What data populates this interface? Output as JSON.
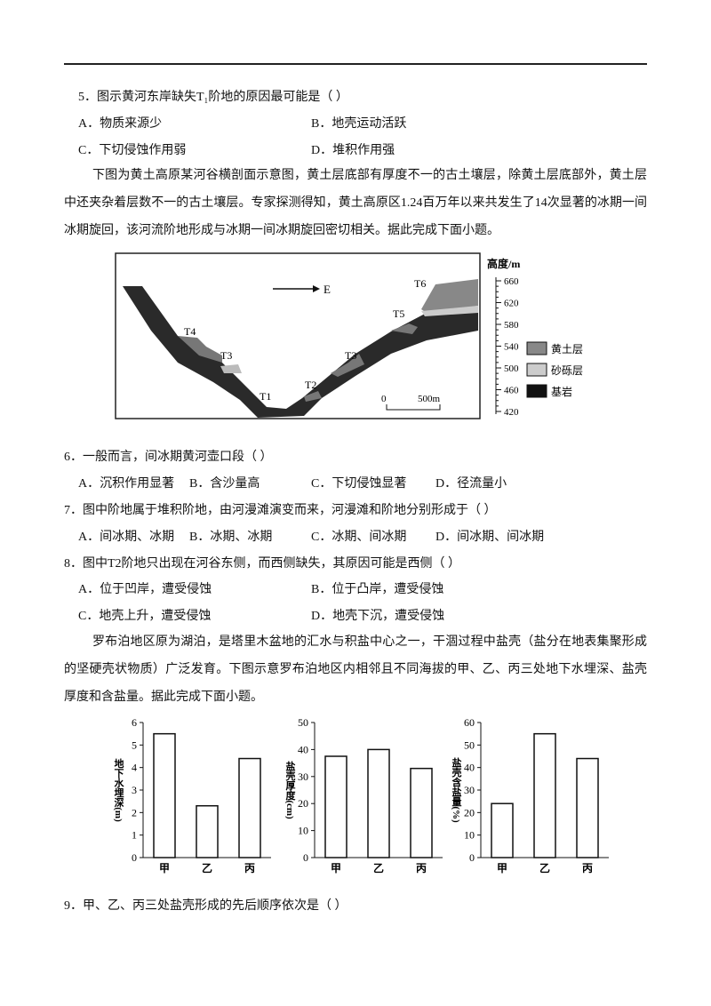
{
  "q5": {
    "stem": "5．图示黄河东岸缺失T₁阶地的原因最可能是（ ）",
    "options": [
      "A．物质来源少",
      "B．地壳运动活跃",
      "C．下切侵蚀作用弱",
      "D．堆积作用强"
    ]
  },
  "passage1": "下图为黄土高原某河谷横剖面示意图，黄土层底部有厚度不一的古土壤层，除黄土层底部外，黄土层中还夹杂着层数不一的古土壤层。专家探测得知，黄土高原区1.24百万年以来共发生了14次显著的冰期一间冰期旋回，该河流阶地形成与冰期一间冰期旋回密切相关。据此完成下面小题。",
  "figure1": {
    "terraces": [
      "T6",
      "T5",
      "T4",
      "T3",
      "T3",
      "T2",
      "T1"
    ],
    "direction": "E",
    "scale": [
      "0",
      "500m"
    ],
    "axis_title": "高度/m",
    "axis_ticks": [
      420,
      460,
      500,
      540,
      580,
      620,
      660
    ],
    "axis_range": [
      420,
      660
    ],
    "legend": [
      "黄土层",
      "砂砾层",
      "基岩"
    ]
  },
  "q6": {
    "stem": "6．一般而言，间冰期黄河壶口段（ ）",
    "options": [
      "A．沉积作用显著",
      "B．含沙量高",
      "C．下切侵蚀显著",
      "D．径流量小"
    ]
  },
  "q7": {
    "stem": "7．图中阶地属于堆积阶地，由河漫滩演变而来，河漫滩和阶地分别形成于（ ）",
    "options": [
      "A．间冰期、冰期",
      "B．冰期、冰期",
      "C．冰期、间冰期",
      "D．间冰期、间冰期"
    ]
  },
  "q8": {
    "stem": "8．图中T2阶地只出现在河谷东侧，而西侧缺失，其原因可能是西侧（ ）",
    "options": [
      "A．位于凹岸，遭受侵蚀",
      "B．位于凸岸，遭受侵蚀",
      "C．地壳上升，遭受侵蚀",
      "D．地壳下沉，遭受侵蚀"
    ]
  },
  "passage2": "罗布泊地区原为湖泊，是塔里木盆地的汇水与积盐中心之一，干涸过程中盐壳（盐分在地表集聚形成的坚硬壳状物质）广泛发育。下图示意罗布泊地区内相邻且不同海拔的甲、乙、丙三处地下水埋深、盐壳厚度和含盐量。据此完成下面小题。",
  "chart_data": [
    {
      "type": "bar",
      "y_label": "地下水埋深(m)",
      "categories": [
        "甲",
        "乙",
        "丙"
      ],
      "values": [
        5.5,
        2.3,
        4.4
      ],
      "ylim": [
        0,
        6
      ],
      "yticks": [
        0,
        1,
        2,
        3,
        4,
        5,
        6
      ]
    },
    {
      "type": "bar",
      "y_label": "盐壳厚度(cm)",
      "categories": [
        "甲",
        "乙",
        "丙"
      ],
      "values": [
        37.5,
        40,
        33
      ],
      "ylim": [
        0,
        50
      ],
      "yticks": [
        0,
        10,
        20,
        30,
        40,
        50
      ]
    },
    {
      "type": "bar",
      "y_label": "盐壳含盐量(%)",
      "categories": [
        "甲",
        "乙",
        "丙"
      ],
      "values": [
        24,
        55,
        44
      ],
      "ylim": [
        0,
        60
      ],
      "yticks": [
        0,
        10,
        20,
        30,
        40,
        50,
        60
      ]
    }
  ],
  "q9": {
    "stem": "9．甲、乙、丙三处盐壳形成的先后顺序依次是（ ）"
  }
}
